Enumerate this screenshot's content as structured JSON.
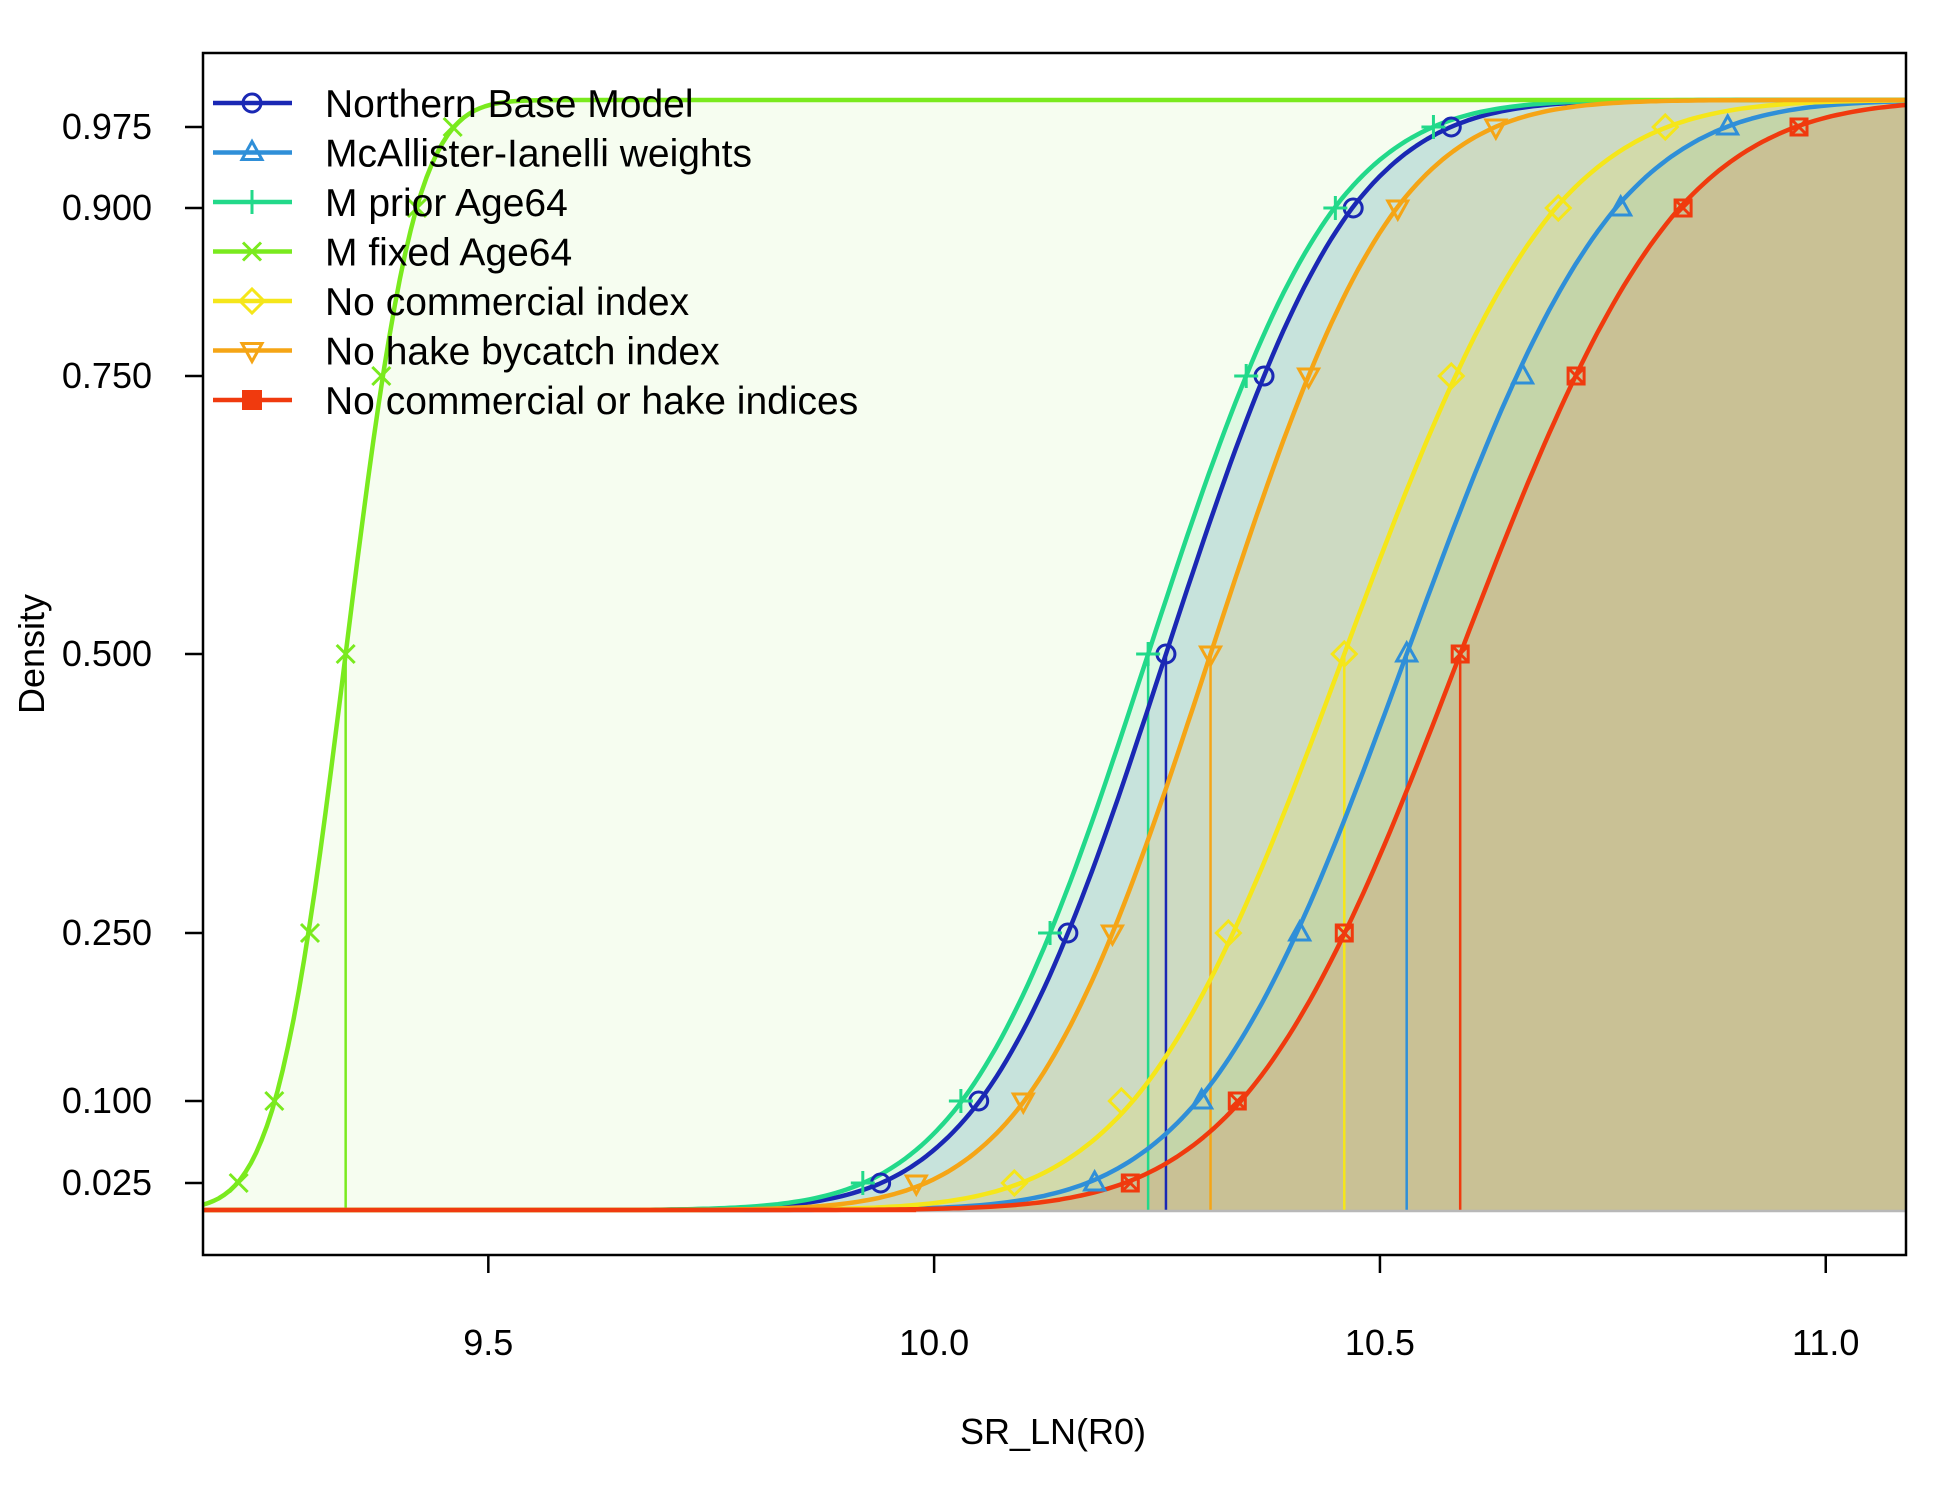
{
  "chart_data": {
    "type": "line",
    "title": "",
    "xlabel": "SR_LN(R0)",
    "ylabel": "Density",
    "xlim": [
      9.18,
      11.09
    ],
    "x_ticks": [
      9.5,
      10.0,
      10.5,
      11.0
    ],
    "x_tick_labels": [
      "9.5",
      "10.0",
      "10.5",
      "11.0"
    ],
    "y_ticks": [
      0.025,
      0.1,
      0.25,
      0.5,
      0.75,
      0.9,
      0.975
    ],
    "y_tick_labels": [
      "0.025",
      "0.100",
      "0.250",
      "0.500",
      "0.750",
      "0.900",
      "0.975"
    ],
    "grid": false,
    "legend_position": "top-left",
    "series": [
      {
        "name": "Northern Base Model",
        "color": "#1a28b4",
        "fill": "#1a28b4",
        "marker": "circle",
        "median": 10.26,
        "sd": 0.163,
        "upper_bound": 11.09,
        "quantile_x": [
          9.94,
          10.05,
          10.15,
          10.26,
          10.37,
          10.47,
          10.58
        ]
      },
      {
        "name": "McAllister-Ianelli weights",
        "color": "#2f8fd8",
        "fill": "#2f8fd8",
        "marker": "triangle",
        "median": 10.53,
        "sd": 0.183,
        "upper_bound": 11.09,
        "quantile_x": [
          10.18,
          10.3,
          10.41,
          10.53,
          10.66,
          10.77,
          10.89
        ]
      },
      {
        "name": "M prior Age64",
        "color": "#22d98a",
        "fill": "#2fe094",
        "marker": "plus",
        "median": 10.24,
        "sd": 0.163,
        "upper_bound": 11.09,
        "quantile_x": [
          9.92,
          10.03,
          10.13,
          10.24,
          10.35,
          10.45,
          10.56
        ]
      },
      {
        "name": "M fixed Age64",
        "color": "#7aea1e",
        "fill": "#b8f28a",
        "marker": "x",
        "median": 9.34,
        "sd": 0.062,
        "upper_bound": 11.09,
        "quantile_x": [
          9.22,
          9.26,
          9.3,
          9.34,
          9.38,
          9.42,
          9.46
        ]
      },
      {
        "name": "No commercial index",
        "color": "#f5e61a",
        "fill": "#f5e61a",
        "marker": "diamond",
        "median": 10.46,
        "sd": 0.185,
        "upper_bound": 11.09,
        "quantile_x": [
          10.09,
          10.21,
          10.33,
          10.46,
          10.58,
          10.7,
          10.82
        ]
      },
      {
        "name": "No hake bycatch index",
        "color": "#f5a516",
        "fill": "#f5a516",
        "marker": "triangle-down",
        "median": 10.31,
        "sd": 0.163,
        "upper_bound": 11.09,
        "quantile_x": [
          9.98,
          10.1,
          10.2,
          10.31,
          10.42,
          10.52,
          10.63
        ]
      },
      {
        "name": "No commercial or hake indices",
        "color": "#f03a0e",
        "fill": "#f03a0e",
        "marker": "box-x",
        "median": 10.59,
        "sd": 0.192,
        "upper_bound": 11.09,
        "quantile_x": [
          10.22,
          10.34,
          10.46,
          10.59,
          10.72,
          10.84,
          10.97
        ]
      }
    ]
  },
  "legend": {
    "items": [
      {
        "label": "Northern Base Model"
      },
      {
        "label": "McAllister-Ianelli weights"
      },
      {
        "label": "M prior Age64"
      },
      {
        "label": "M fixed Age64"
      },
      {
        "label": "No commercial index"
      },
      {
        "label": "No hake bycatch index"
      },
      {
        "label": "No commercial or hake indices"
      }
    ]
  }
}
